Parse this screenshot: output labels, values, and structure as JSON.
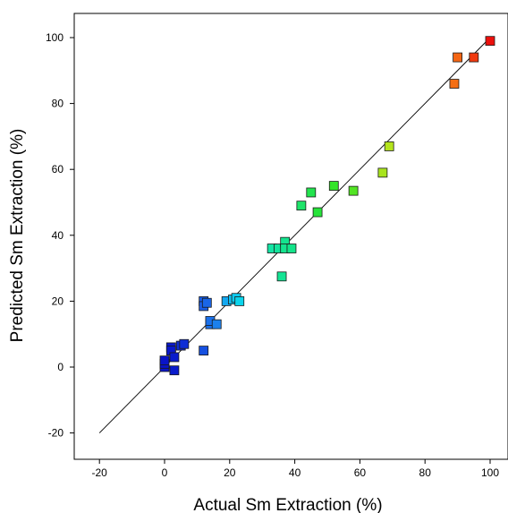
{
  "chart_data": {
    "type": "scatter",
    "title": "",
    "xlabel": "Actual Sm Extraction (%)",
    "ylabel": "Predicted Sm Extraction (%)",
    "xlim": [
      -28,
      106
    ],
    "ylim": [
      -28,
      108
    ],
    "x_ticks": [
      -20,
      0,
      20,
      40,
      60,
      80,
      100
    ],
    "y_ticks": [
      -20,
      0,
      20,
      40,
      60,
      80,
      100
    ],
    "reference_line": {
      "from": [
        -20,
        -20
      ],
      "to": [
        100,
        100
      ],
      "color": "#000000"
    },
    "grid": false,
    "legend": "none",
    "marker": "square",
    "marker_edge_color": "#1a1a1a",
    "points": [
      {
        "x": 0,
        "y": 0,
        "color": "#0a14c8"
      },
      {
        "x": 0,
        "y": 1,
        "color": "#0a14c8"
      },
      {
        "x": 0,
        "y": 2,
        "color": "#0a14c8"
      },
      {
        "x": 2,
        "y": 6,
        "color": "#0a18cc"
      },
      {
        "x": 2,
        "y": 5,
        "color": "#0a18cc"
      },
      {
        "x": 3,
        "y": 3,
        "color": "#0a1ccc"
      },
      {
        "x": 3,
        "y": -1,
        "color": "#0a1ccc"
      },
      {
        "x": 5,
        "y": 6.5,
        "color": "#0e2ad4"
      },
      {
        "x": 6,
        "y": 7,
        "color": "#0e2ed6"
      },
      {
        "x": 12,
        "y": 5,
        "color": "#1650e0"
      },
      {
        "x": 12,
        "y": 20,
        "color": "#1a5ee6"
      },
      {
        "x": 12,
        "y": 18.5,
        "color": "#1a5ee6"
      },
      {
        "x": 13,
        "y": 19.5,
        "color": "#1a66e8"
      },
      {
        "x": 14,
        "y": 13,
        "color": "#1a70ea"
      },
      {
        "x": 14,
        "y": 14,
        "color": "#1a70ea"
      },
      {
        "x": 16,
        "y": 13,
        "color": "#1c80ec"
      },
      {
        "x": 19,
        "y": 20,
        "color": "#14a8f0"
      },
      {
        "x": 21,
        "y": 20.5,
        "color": "#10c2f0"
      },
      {
        "x": 22,
        "y": 21,
        "color": "#0ccaf0"
      },
      {
        "x": 23,
        "y": 20,
        "color": "#0cd4ec"
      },
      {
        "x": 33,
        "y": 36,
        "color": "#14e4a4"
      },
      {
        "x": 35,
        "y": 36,
        "color": "#14e49c"
      },
      {
        "x": 36,
        "y": 27.5,
        "color": "#14e494"
      },
      {
        "x": 37,
        "y": 38,
        "color": "#14e48e"
      },
      {
        "x": 37,
        "y": 36,
        "color": "#14e48e"
      },
      {
        "x": 39,
        "y": 36,
        "color": "#14e48a"
      },
      {
        "x": 42,
        "y": 49,
        "color": "#1ee46a"
      },
      {
        "x": 45,
        "y": 53,
        "color": "#22e44e"
      },
      {
        "x": 47,
        "y": 47,
        "color": "#26e43a"
      },
      {
        "x": 52,
        "y": 55,
        "color": "#34e42a"
      },
      {
        "x": 58,
        "y": 53.5,
        "color": "#52e424"
      },
      {
        "x": 67,
        "y": 59,
        "color": "#a8e41e"
      },
      {
        "x": 69,
        "y": 67,
        "color": "#b4e41c"
      },
      {
        "x": 89,
        "y": 86,
        "color": "#f46e14"
      },
      {
        "x": 90,
        "y": 94,
        "color": "#f46614"
      },
      {
        "x": 95,
        "y": 94,
        "color": "#f03a10"
      },
      {
        "x": 100,
        "y": 99,
        "color": "#ec100c"
      }
    ]
  }
}
